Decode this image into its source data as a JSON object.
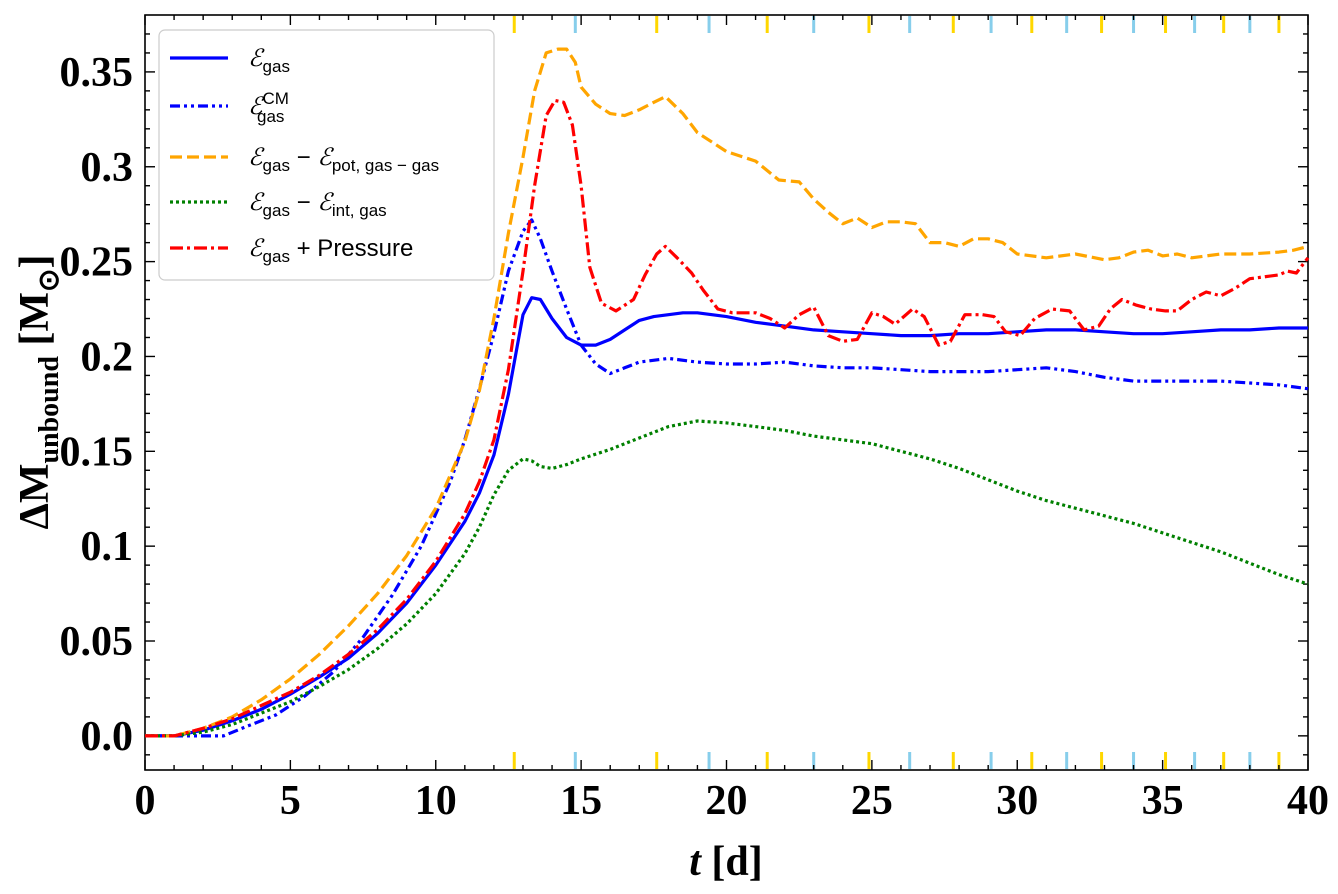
{
  "chart_data": {
    "type": "line",
    "xlabel": "t [d]",
    "ylabel": "ΔM_unbound [M⊙]",
    "xlim": [
      0,
      40
    ],
    "ylim": [
      -0.018,
      0.38
    ],
    "xticks": [
      "0",
      "5",
      "10",
      "15",
      "20",
      "25",
      "30",
      "35",
      "40"
    ],
    "yticks": [
      "0.0",
      "0.05",
      "0.1",
      "0.15",
      "0.2",
      "0.25",
      "0.3",
      "0.35"
    ],
    "grid": false,
    "legend_position": "top-left",
    "series": [
      {
        "name": "ℰgas",
        "color": "#0000ff",
        "style": "solid",
        "x": [
          0,
          1,
          2,
          3,
          4,
          5,
          6,
          7,
          8,
          9,
          10,
          11,
          11.5,
          12,
          12.5,
          13,
          13.3,
          13.6,
          14,
          14.5,
          15,
          15.5,
          16,
          16.5,
          17,
          17.5,
          18,
          18.5,
          19,
          20,
          21,
          22,
          23,
          24,
          25,
          26,
          27,
          28,
          29,
          30,
          31,
          32,
          33,
          34,
          35,
          36,
          37,
          38,
          39,
          40
        ],
        "y": [
          0,
          0.0,
          0.003,
          0.008,
          0.014,
          0.022,
          0.031,
          0.041,
          0.054,
          0.07,
          0.09,
          0.113,
          0.128,
          0.148,
          0.18,
          0.222,
          0.231,
          0.23,
          0.22,
          0.21,
          0.206,
          0.206,
          0.209,
          0.214,
          0.219,
          0.221,
          0.222,
          0.223,
          0.223,
          0.221,
          0.218,
          0.216,
          0.214,
          0.213,
          0.212,
          0.211,
          0.211,
          0.212,
          0.212,
          0.213,
          0.214,
          0.214,
          0.213,
          0.212,
          0.212,
          0.213,
          0.214,
          0.214,
          0.215,
          0.215
        ]
      },
      {
        "name": "ℰgas^CM",
        "color": "#0000ff",
        "style": "dashdotdot",
        "x": [
          0,
          1,
          2,
          2.7,
          3.5,
          4.5,
          5.5,
          6.5,
          7.5,
          8.5,
          9.5,
          10.5,
          11,
          11.5,
          12,
          12.5,
          13,
          13.3,
          13.6,
          14,
          14.5,
          15,
          15.5,
          16,
          16.5,
          17,
          18,
          19,
          20,
          21,
          22,
          23,
          24,
          25,
          26,
          27,
          28,
          29,
          30,
          31,
          32,
          33,
          34,
          35,
          36,
          37,
          38,
          39,
          40
        ],
        "y": [
          0,
          0.0,
          0.0,
          0.0,
          0.005,
          0.011,
          0.021,
          0.034,
          0.052,
          0.074,
          0.1,
          0.134,
          0.156,
          0.183,
          0.212,
          0.245,
          0.266,
          0.272,
          0.262,
          0.245,
          0.225,
          0.206,
          0.196,
          0.191,
          0.194,
          0.197,
          0.199,
          0.197,
          0.196,
          0.196,
          0.197,
          0.195,
          0.194,
          0.194,
          0.193,
          0.192,
          0.192,
          0.192,
          0.193,
          0.194,
          0.192,
          0.189,
          0.187,
          0.187,
          0.187,
          0.187,
          0.186,
          0.185,
          0.183
        ]
      },
      {
        "name": "ℰgas − ℰpot,gas−gas",
        "color": "#ffa500",
        "style": "dashed",
        "x": [
          0,
          1,
          2,
          3,
          4,
          5,
          6,
          7,
          8,
          9,
          10,
          11,
          11.5,
          12,
          12.5,
          13,
          13.4,
          13.8,
          14.2,
          14.5,
          14.8,
          15,
          15.5,
          16,
          16.5,
          17,
          17.5,
          17.9,
          18.5,
          19,
          19.5,
          20,
          21,
          21.8,
          22.5,
          23,
          23.5,
          24,
          24.5,
          25,
          25.5,
          26,
          26.5,
          27,
          27.5,
          28,
          28.5,
          29,
          29.5,
          30,
          31,
          32,
          33,
          33.5,
          34,
          34.5,
          35,
          35.5,
          36,
          37,
          38,
          39,
          39.5,
          40
        ],
        "y": [
          0,
          0.0,
          0.004,
          0.01,
          0.019,
          0.03,
          0.043,
          0.058,
          0.075,
          0.095,
          0.12,
          0.155,
          0.182,
          0.22,
          0.265,
          0.305,
          0.34,
          0.36,
          0.362,
          0.362,
          0.355,
          0.342,
          0.333,
          0.328,
          0.327,
          0.33,
          0.334,
          0.337,
          0.328,
          0.318,
          0.313,
          0.308,
          0.303,
          0.293,
          0.292,
          0.283,
          0.276,
          0.27,
          0.273,
          0.268,
          0.271,
          0.271,
          0.27,
          0.26,
          0.26,
          0.258,
          0.262,
          0.262,
          0.26,
          0.254,
          0.252,
          0.254,
          0.251,
          0.252,
          0.255,
          0.256,
          0.253,
          0.254,
          0.252,
          0.254,
          0.254,
          0.255,
          0.256,
          0.258
        ]
      },
      {
        "name": "ℰgas − ℰint,gas",
        "color": "#008000",
        "style": "dotted",
        "x": [
          0,
          1,
          2,
          3,
          4,
          5,
          6,
          7,
          8,
          9,
          10,
          11,
          11.5,
          12,
          12.5,
          13,
          13.3,
          13.6,
          14,
          14.5,
          15,
          16,
          17,
          18,
          19,
          20,
          21,
          22,
          23,
          24,
          25,
          26,
          27,
          28,
          29,
          30,
          31,
          32,
          33,
          34,
          35,
          36,
          37,
          38,
          39,
          40
        ],
        "y": [
          0,
          0.0,
          0.002,
          0.006,
          0.012,
          0.018,
          0.026,
          0.035,
          0.046,
          0.059,
          0.075,
          0.096,
          0.11,
          0.127,
          0.14,
          0.146,
          0.145,
          0.142,
          0.141,
          0.143,
          0.146,
          0.151,
          0.157,
          0.163,
          0.166,
          0.165,
          0.163,
          0.161,
          0.158,
          0.156,
          0.154,
          0.15,
          0.146,
          0.141,
          0.135,
          0.129,
          0.124,
          0.12,
          0.116,
          0.112,
          0.107,
          0.102,
          0.097,
          0.091,
          0.085,
          0.08
        ]
      },
      {
        "name": "ℰgas + Pressure",
        "color": "#ff0000",
        "style": "dashdot",
        "x": [
          0,
          1,
          2,
          3,
          4,
          5,
          6,
          7,
          8,
          9,
          10,
          11,
          11.5,
          12,
          12.5,
          13,
          13.4,
          13.8,
          14.1,
          14.4,
          14.7,
          15,
          15.3,
          15.7,
          16.2,
          16.8,
          17.2,
          17.6,
          17.9,
          18.3,
          18.8,
          19.2,
          19.7,
          20.2,
          21,
          21.5,
          22,
          22.5,
          23,
          23.5,
          24,
          24.5,
          25,
          25.4,
          25.8,
          26.4,
          26.8,
          27.3,
          27.7,
          28.2,
          28.8,
          29.2,
          29.6,
          30.1,
          30.6,
          31.2,
          31.8,
          32.3,
          32.8,
          33.2,
          33.6,
          34.1,
          34.6,
          35.1,
          35.5,
          36,
          36.5,
          37,
          37.5,
          38,
          38.5,
          39,
          39.3,
          39.6,
          40
        ],
        "y": [
          0,
          0.0,
          0.004,
          0.009,
          0.016,
          0.023,
          0.032,
          0.043,
          0.056,
          0.072,
          0.092,
          0.117,
          0.134,
          0.156,
          0.193,
          0.245,
          0.29,
          0.327,
          0.335,
          0.334,
          0.322,
          0.29,
          0.247,
          0.228,
          0.224,
          0.23,
          0.243,
          0.254,
          0.258,
          0.252,
          0.244,
          0.235,
          0.225,
          0.223,
          0.223,
          0.22,
          0.215,
          0.222,
          0.226,
          0.211,
          0.208,
          0.209,
          0.223,
          0.221,
          0.217,
          0.225,
          0.221,
          0.206,
          0.208,
          0.222,
          0.222,
          0.221,
          0.213,
          0.211,
          0.22,
          0.225,
          0.224,
          0.214,
          0.216,
          0.225,
          0.23,
          0.227,
          0.225,
          0.224,
          0.224,
          0.23,
          0.234,
          0.232,
          0.236,
          0.241,
          0.242,
          0.243,
          0.245,
          0.244,
          0.252
        ]
      }
    ],
    "edge_markers": [
      {
        "x": 12.7,
        "color": "#ffd700"
      },
      {
        "x": 14.8,
        "color": "#87ceeb"
      },
      {
        "x": 17.6,
        "color": "#ffd700"
      },
      {
        "x": 19.4,
        "color": "#87ceeb"
      },
      {
        "x": 21.4,
        "color": "#ffd700"
      },
      {
        "x": 23.0,
        "color": "#87ceeb"
      },
      {
        "x": 24.9,
        "color": "#ffd700"
      },
      {
        "x": 26.3,
        "color": "#87ceeb"
      },
      {
        "x": 27.8,
        "color": "#ffd700"
      },
      {
        "x": 29.1,
        "color": "#87ceeb"
      },
      {
        "x": 30.5,
        "color": "#ffd700"
      },
      {
        "x": 31.7,
        "color": "#87ceeb"
      },
      {
        "x": 32.9,
        "color": "#ffd700"
      },
      {
        "x": 34.0,
        "color": "#87ceeb"
      },
      {
        "x": 35.1,
        "color": "#ffd700"
      },
      {
        "x": 36.1,
        "color": "#87ceeb"
      },
      {
        "x": 37.1,
        "color": "#ffd700"
      },
      {
        "x": 38.0,
        "color": "#87ceeb"
      },
      {
        "x": 39.0,
        "color": "#ffd700"
      }
    ]
  }
}
